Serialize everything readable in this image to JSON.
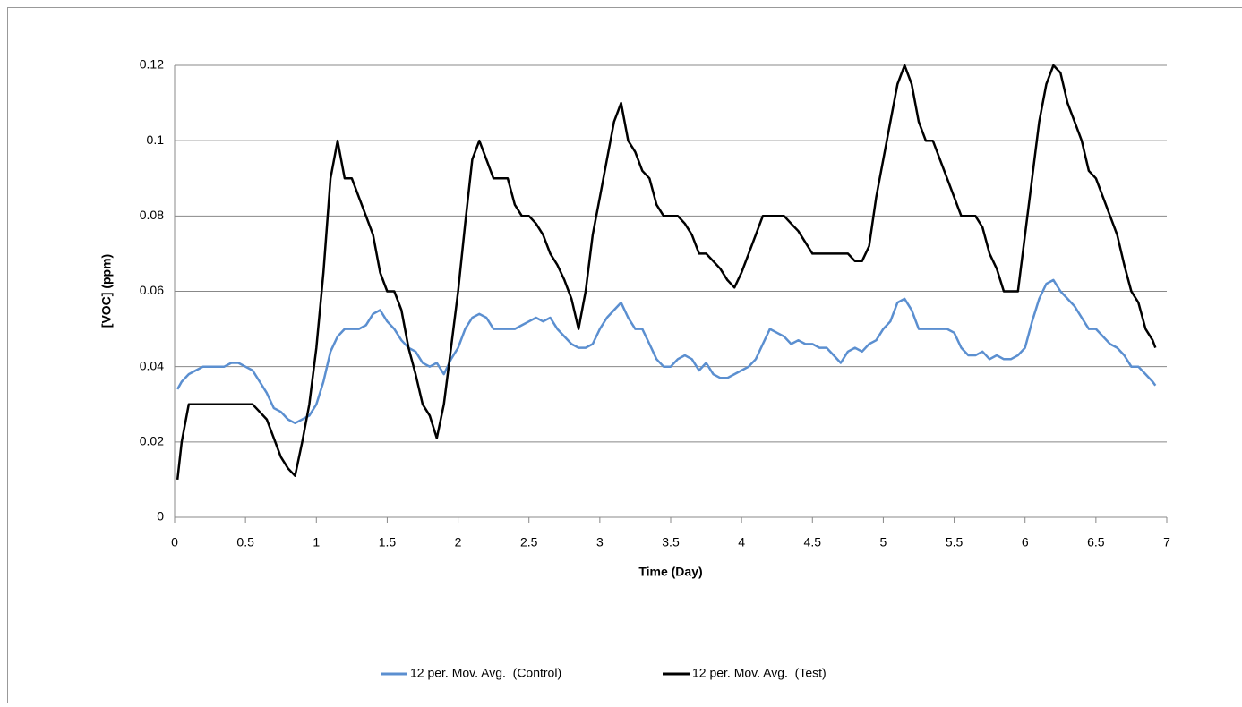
{
  "chart_data": {
    "type": "line",
    "x_label": "Time (Day)",
    "y_label": "[VOC] (ppm)",
    "x": [
      0.02,
      0.05,
      0.1,
      0.15,
      0.2,
      0.25,
      0.3,
      0.35,
      0.4,
      0.45,
      0.5,
      0.55,
      0.6,
      0.65,
      0.7,
      0.75,
      0.8,
      0.85,
      0.9,
      0.95,
      1.0,
      1.05,
      1.1,
      1.15,
      1.2,
      1.25,
      1.3,
      1.35,
      1.4,
      1.45,
      1.5,
      1.55,
      1.6,
      1.65,
      1.7,
      1.75,
      1.8,
      1.85,
      1.9,
      1.95,
      2.0,
      2.05,
      2.1,
      2.15,
      2.2,
      2.25,
      2.3,
      2.35,
      2.4,
      2.45,
      2.5,
      2.55,
      2.6,
      2.65,
      2.7,
      2.75,
      2.8,
      2.85,
      2.9,
      2.95,
      3.0,
      3.05,
      3.1,
      3.15,
      3.2,
      3.25,
      3.3,
      3.35,
      3.4,
      3.45,
      3.5,
      3.55,
      3.6,
      3.65,
      3.7,
      3.75,
      3.8,
      3.85,
      3.9,
      3.95,
      4.0,
      4.05,
      4.1,
      4.15,
      4.2,
      4.25,
      4.3,
      4.35,
      4.4,
      4.45,
      4.5,
      4.55,
      4.6,
      4.65,
      4.7,
      4.75,
      4.8,
      4.85,
      4.9,
      4.95,
      5.0,
      5.05,
      5.1,
      5.15,
      5.2,
      5.25,
      5.3,
      5.35,
      5.4,
      5.45,
      5.5,
      5.55,
      5.6,
      5.65,
      5.7,
      5.75,
      5.8,
      5.85,
      5.9,
      5.95,
      6.0,
      6.05,
      6.1,
      6.15,
      6.2,
      6.25,
      6.3,
      6.35,
      6.4,
      6.45,
      6.5,
      6.55,
      6.6,
      6.65,
      6.7,
      6.75,
      6.8,
      6.85,
      6.9,
      6.92
    ],
    "series": [
      {
        "name": "12 per. Mov. Avg.  (Control)",
        "color": "#5b8fd0",
        "values": [
          0.034,
          0.036,
          0.038,
          0.039,
          0.04,
          0.04,
          0.04,
          0.04,
          0.041,
          0.041,
          0.04,
          0.039,
          0.036,
          0.033,
          0.029,
          0.028,
          0.026,
          0.025,
          0.026,
          0.027,
          0.03,
          0.036,
          0.044,
          0.048,
          0.05,
          0.05,
          0.05,
          0.051,
          0.054,
          0.055,
          0.052,
          0.05,
          0.047,
          0.045,
          0.044,
          0.041,
          0.04,
          0.041,
          0.038,
          0.042,
          0.045,
          0.05,
          0.053,
          0.054,
          0.053,
          0.05,
          0.05,
          0.05,
          0.05,
          0.051,
          0.052,
          0.053,
          0.052,
          0.053,
          0.05,
          0.048,
          0.046,
          0.045,
          0.045,
          0.046,
          0.05,
          0.053,
          0.055,
          0.057,
          0.053,
          0.05,
          0.05,
          0.046,
          0.042,
          0.04,
          0.04,
          0.042,
          0.043,
          0.042,
          0.039,
          0.041,
          0.038,
          0.037,
          0.037,
          0.038,
          0.039,
          0.04,
          0.042,
          0.046,
          0.05,
          0.049,
          0.048,
          0.046,
          0.047,
          0.046,
          0.046,
          0.045,
          0.045,
          0.043,
          0.041,
          0.044,
          0.045,
          0.044,
          0.046,
          0.047,
          0.05,
          0.052,
          0.057,
          0.058,
          0.055,
          0.05,
          0.05,
          0.05,
          0.05,
          0.05,
          0.049,
          0.045,
          0.043,
          0.043,
          0.044,
          0.042,
          0.043,
          0.042,
          0.042,
          0.043,
          0.045,
          0.052,
          0.058,
          0.062,
          0.063,
          0.06,
          0.058,
          0.056,
          0.053,
          0.05,
          0.05,
          0.048,
          0.046,
          0.045,
          0.043,
          0.04,
          0.04,
          0.038,
          0.036,
          0.035
        ]
      },
      {
        "name": "12 per. Mov. Avg.  (Test)",
        "color": "#000000",
        "values": [
          0.01,
          0.02,
          0.03,
          0.03,
          0.03,
          0.03,
          0.03,
          0.03,
          0.03,
          0.03,
          0.03,
          0.03,
          0.028,
          0.026,
          0.021,
          0.016,
          0.013,
          0.011,
          0.02,
          0.03,
          0.045,
          0.065,
          0.09,
          0.1,
          0.09,
          0.09,
          0.085,
          0.08,
          0.075,
          0.065,
          0.06,
          0.06,
          0.055,
          0.045,
          0.038,
          0.03,
          0.027,
          0.021,
          0.03,
          0.045,
          0.06,
          0.078,
          0.095,
          0.1,
          0.095,
          0.09,
          0.09,
          0.09,
          0.083,
          0.08,
          0.08,
          0.078,
          0.075,
          0.07,
          0.067,
          0.063,
          0.058,
          0.05,
          0.06,
          0.075,
          0.085,
          0.095,
          0.105,
          0.11,
          0.1,
          0.097,
          0.092,
          0.09,
          0.083,
          0.08,
          0.08,
          0.08,
          0.078,
          0.075,
          0.07,
          0.07,
          0.068,
          0.066,
          0.063,
          0.061,
          0.065,
          0.07,
          0.075,
          0.08,
          0.08,
          0.08,
          0.08,
          0.078,
          0.076,
          0.073,
          0.07,
          0.07,
          0.07,
          0.07,
          0.07,
          0.07,
          0.068,
          0.068,
          0.072,
          0.085,
          0.095,
          0.105,
          0.115,
          0.12,
          0.115,
          0.105,
          0.1,
          0.1,
          0.095,
          0.09,
          0.085,
          0.08,
          0.08,
          0.08,
          0.077,
          0.07,
          0.066,
          0.06,
          0.06,
          0.06,
          0.075,
          0.09,
          0.105,
          0.115,
          0.12,
          0.118,
          0.11,
          0.105,
          0.1,
          0.092,
          0.09,
          0.085,
          0.08,
          0.075,
          0.067,
          0.06,
          0.057,
          0.05,
          0.047,
          0.045
        ]
      }
    ],
    "xlim": [
      0,
      7
    ],
    "xticks": [
      0,
      0.5,
      1,
      1.5,
      2,
      2.5,
      3,
      3.5,
      4,
      4.5,
      5,
      5.5,
      6,
      6.5,
      7
    ],
    "ylim": [
      0,
      0.12
    ],
    "yticks": [
      0,
      0.02,
      0.04,
      0.06,
      0.08,
      0.1,
      0.12
    ],
    "grid": true,
    "legend": "bottom"
  }
}
